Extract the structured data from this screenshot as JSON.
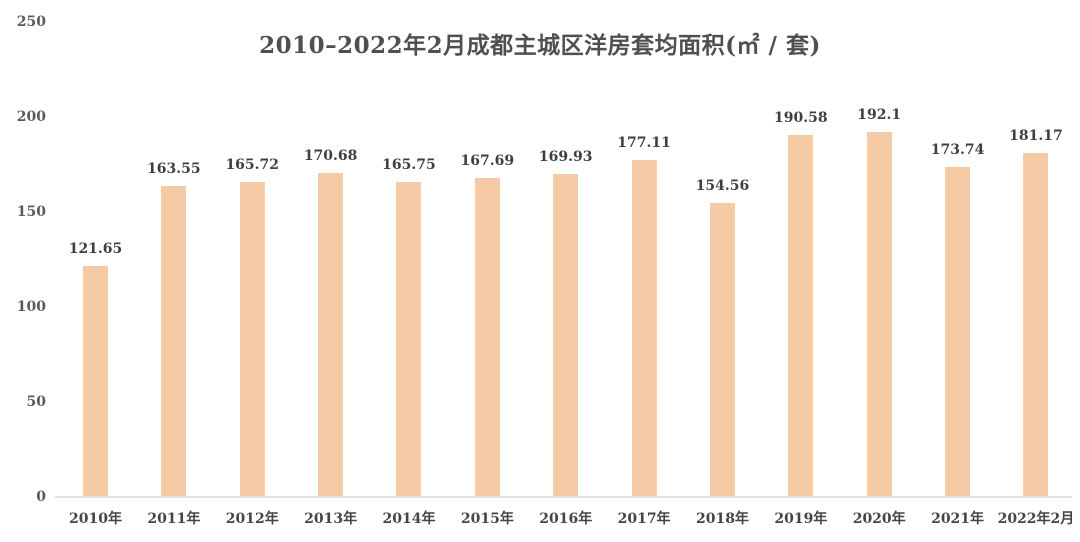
{
  "chart_data": {
    "type": "bar",
    "title": "2010–2022年2月成都主城区洋房套均面积(㎡ / 套)",
    "categories": [
      "2010年",
      "2011年",
      "2012年",
      "2013年",
      "2014年",
      "2015年",
      "2016年",
      "2017年",
      "2018年",
      "2019年",
      "2020年",
      "2021年",
      "2022年2月"
    ],
    "values": [
      121.65,
      163.55,
      165.72,
      170.68,
      165.75,
      167.69,
      169.93,
      177.11,
      154.56,
      190.58,
      192.1,
      173.74,
      181.17
    ],
    "xlabel": "",
    "ylabel": "",
    "ylim": [
      0,
      250
    ],
    "yticks": [
      0,
      50,
      100,
      150,
      200,
      250
    ],
    "grid": false,
    "legend": "none",
    "bar_color": "#f6caa4",
    "label_color": "#3f3f3f",
    "axis_line_color": "#e2e2e2"
  }
}
